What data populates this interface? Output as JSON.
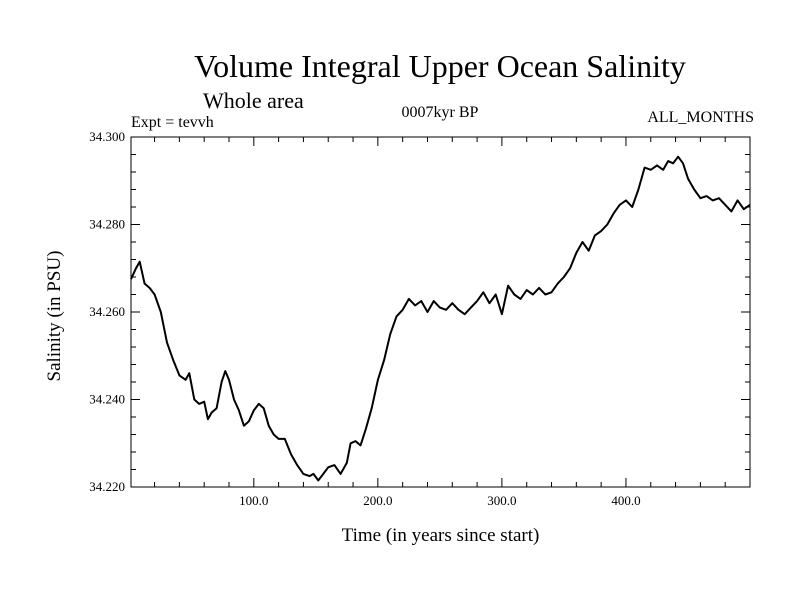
{
  "chart_data": {
    "type": "line",
    "title": "Volume Integral Upper Ocean Salinity",
    "subtitle": "Whole area",
    "experiment": "Expt = tevvh",
    "period": "0007kyr BP",
    "months": "ALL_MONTHS",
    "xlabel": "Time (in years since start)",
    "ylabel": "Salinity (in PSU)",
    "xlim": [
      1,
      500
    ],
    "ylim": [
      34.22,
      34.3
    ],
    "x_ticks": [
      100,
      200,
      300,
      400
    ],
    "x_tick_labels": [
      "100.0",
      "200.0",
      "300.0",
      "400.0"
    ],
    "y_ticks": [
      34.22,
      34.24,
      34.26,
      34.28,
      34.3
    ],
    "y_tick_labels": [
      "34.220",
      "34.240",
      "34.260",
      "34.280",
      "34.300"
    ],
    "grid": false,
    "series": [
      {
        "color": "#000000",
        "x": [
          1,
          5,
          8,
          12,
          16,
          20,
          25,
          30,
          35,
          40,
          45,
          48,
          52,
          56,
          60,
          63,
          66,
          70,
          74,
          77,
          80,
          84,
          88,
          92,
          96,
          100,
          104,
          108,
          112,
          116,
          120,
          125,
          130,
          135,
          140,
          145,
          148,
          152,
          156,
          160,
          165,
          170,
          175,
          178,
          182,
          186,
          190,
          195,
          200,
          205,
          210,
          215,
          220,
          225,
          230,
          235,
          240,
          245,
          250,
          255,
          260,
          265,
          270,
          275,
          280,
          285,
          290,
          295,
          300,
          305,
          310,
          315,
          320,
          325,
          330,
          335,
          340,
          345,
          350,
          355,
          360,
          365,
          370,
          375,
          380,
          385,
          390,
          395,
          400,
          405,
          410,
          415,
          420,
          425,
          430,
          434,
          438,
          442,
          446,
          450,
          455,
          460,
          465,
          470,
          475,
          480,
          485,
          490,
          495,
          500
        ],
        "y": [
          34.2675,
          34.27,
          34.2715,
          34.2665,
          34.2655,
          34.264,
          34.26,
          34.253,
          34.249,
          34.2455,
          34.2445,
          34.246,
          34.24,
          34.239,
          34.2395,
          34.2355,
          34.237,
          34.238,
          34.244,
          34.2465,
          34.2445,
          34.24,
          34.2375,
          34.234,
          34.235,
          34.2375,
          34.239,
          34.238,
          34.234,
          34.232,
          34.231,
          34.231,
          34.2275,
          34.225,
          34.223,
          34.2225,
          34.223,
          34.2215,
          34.223,
          34.2245,
          34.225,
          34.223,
          34.2255,
          34.23,
          34.2305,
          34.2295,
          34.233,
          34.238,
          34.2445,
          34.249,
          34.255,
          34.259,
          34.2605,
          34.263,
          34.2615,
          34.2625,
          34.26,
          34.2625,
          34.261,
          34.2605,
          34.262,
          34.2605,
          34.2595,
          34.261,
          34.2625,
          34.2645,
          34.262,
          34.264,
          34.2595,
          34.266,
          34.264,
          34.263,
          34.265,
          34.264,
          34.2655,
          34.264,
          34.2645,
          34.2665,
          34.268,
          34.27,
          34.2735,
          34.276,
          34.274,
          34.2775,
          34.2785,
          34.28,
          34.2825,
          34.2845,
          34.2855,
          34.284,
          34.288,
          34.293,
          34.2925,
          34.2935,
          34.2925,
          34.2945,
          34.294,
          34.2955,
          34.294,
          34.2905,
          34.288,
          34.286,
          34.2865,
          34.2855,
          34.286,
          34.2845,
          34.283,
          34.2855,
          34.2835,
          34.2845
        ]
      }
    ]
  }
}
